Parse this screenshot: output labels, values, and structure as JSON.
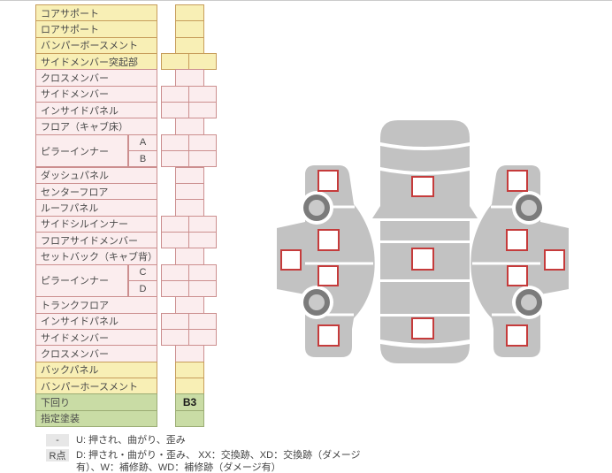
{
  "table": {
    "rows": [
      {
        "label": "コアサポート",
        "group": "yellow",
        "cells": 1,
        "value": ""
      },
      {
        "label": "ロアサポート",
        "group": "yellow",
        "cells": 1,
        "value": ""
      },
      {
        "label": "バンパーボースメント",
        "group": "yellow",
        "cells": 1,
        "value": ""
      },
      {
        "label": "サイドメンバー突起部",
        "group": "yellow",
        "cells": 2,
        "value": ""
      },
      {
        "label": "クロスメンバー",
        "group": "pink",
        "cells": 1,
        "value": ""
      },
      {
        "label": "サイドメンバー",
        "group": "pink",
        "cells": 2,
        "value": ""
      },
      {
        "label": "インサイドパネル",
        "group": "pink",
        "cells": 2,
        "value": ""
      },
      {
        "label": "フロア（キャブ床）",
        "group": "pink",
        "cells": 1,
        "value": ""
      },
      {
        "label": "ピラーインナー",
        "sub": "A",
        "span": 2,
        "group": "pink",
        "cells": 2,
        "value": ""
      },
      {
        "sub": "B",
        "group": "pink",
        "cells": 2,
        "value": ""
      },
      {
        "label": "ダッシュパネル",
        "group": "pink",
        "cells": 1,
        "value": ""
      },
      {
        "label": "センターフロア",
        "group": "pink",
        "cells": 1,
        "value": ""
      },
      {
        "label": "ルーフパネル",
        "group": "pink",
        "cells": 1,
        "value": ""
      },
      {
        "label": "サイドシルインナー",
        "group": "pink",
        "cells": 2,
        "value": ""
      },
      {
        "label": "フロアサイドメンバー",
        "group": "pink",
        "cells": 2,
        "value": ""
      },
      {
        "label": "セットバック（キャブ背）",
        "group": "pink",
        "cells": 1,
        "value": ""
      },
      {
        "label": "ピラーインナー",
        "sub": "C",
        "span": 2,
        "group": "pink",
        "cells": 2,
        "value": ""
      },
      {
        "sub": "D",
        "group": "pink",
        "cells": 2,
        "value": ""
      },
      {
        "label": "トランクフロア",
        "group": "pink",
        "cells": 1,
        "value": ""
      },
      {
        "label": "インサイドパネル",
        "group": "pink",
        "cells": 2,
        "value": ""
      },
      {
        "label": "サイドメンバー",
        "group": "pink",
        "cells": 2,
        "value": ""
      },
      {
        "label": "クロスメンバー",
        "group": "pink",
        "cells": 1,
        "value": ""
      },
      {
        "label": "バックパネル",
        "group": "yellow",
        "cells": 1,
        "value": ""
      },
      {
        "label": "バンパーホースメント",
        "group": "yellow",
        "cells": 1,
        "value": ""
      },
      {
        "label": "下回り",
        "group": "green",
        "cells": 1,
        "value": "B3"
      },
      {
        "label": "指定塗装",
        "group": "green",
        "cells": 1,
        "value": ""
      }
    ]
  },
  "legend": {
    "rows": [
      {
        "badge": "-",
        "text": "U: 押され、曲がり、歪み"
      },
      {
        "badge": "R点",
        "text": "D: 押され・曲がり・歪み、 XX：交換跡、XD：交換跡（ダメージ有）、W：補修跡、WD：補修跡（ダメージ有）"
      }
    ]
  },
  "diagram": {
    "checkbox_count": 13,
    "views": [
      "left-side",
      "top",
      "right-side"
    ]
  },
  "colors": {
    "row_yellow_bg": "#F8EFB5",
    "row_yellow_border": "#C79D5B",
    "row_pink_bg": "#FBEDEE",
    "row_pink_border": "#CC8F8F",
    "row_green_bg": "#C9DCA5",
    "row_green_border": "#9BAC74",
    "label_text": "#4A4A4A",
    "value_text": "#1A1A1A",
    "legend_badge_bg": "#E7E7E7",
    "top_line": "#CBCBCB",
    "car_body_gray": "#C2C2C2",
    "wheel_ring": "#7B7B7B",
    "wheel_hub": "#CACACA",
    "checkbox_red": "#C53B3B"
  }
}
